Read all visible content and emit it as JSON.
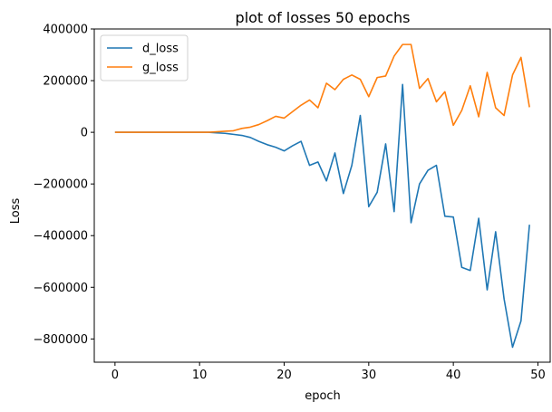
{
  "chart_data": {
    "type": "line",
    "title": "plot of losses 50 epochs",
    "xlabel": "epoch",
    "ylabel": "Loss",
    "xlim": [
      -2.45,
      51.45
    ],
    "ylim": [
      -890000,
      400000
    ],
    "xticks": [
      0,
      10,
      20,
      30,
      40,
      50
    ],
    "yticks": [
      400000,
      200000,
      0,
      -200000,
      -400000,
      -600000,
      -800000
    ],
    "grid": false,
    "legend_position": "top-left",
    "x": [
      0,
      1,
      2,
      3,
      4,
      5,
      6,
      7,
      8,
      9,
      10,
      11,
      12,
      13,
      14,
      15,
      16,
      17,
      18,
      19,
      20,
      21,
      22,
      23,
      24,
      25,
      26,
      27,
      28,
      29,
      30,
      31,
      32,
      33,
      34,
      35,
      36,
      37,
      38,
      39,
      40,
      41,
      42,
      43,
      44,
      45,
      46,
      47,
      48,
      49
    ],
    "series": [
      {
        "name": "d_loss",
        "color": "#1f77b4",
        "values": [
          0,
          0,
          0,
          0,
          0,
          0,
          0,
          0,
          0,
          0,
          0,
          0,
          -2000,
          -4000,
          -8000,
          -12000,
          -20000,
          -35000,
          -48000,
          -58000,
          -72000,
          -52000,
          -35000,
          -128000,
          -115000,
          -188000,
          -80000,
          -237000,
          -128000,
          65000,
          -288000,
          -232000,
          -45000,
          -307000,
          185000,
          -350000,
          -200000,
          -147000,
          -128000,
          -325000,
          -328000,
          -523000,
          -535000,
          -333000,
          -610000,
          -385000,
          -645000,
          -832000,
          -730000,
          -358000
        ]
      },
      {
        "name": "g_loss",
        "color": "#ff7f0e",
        "values": [
          0,
          0,
          0,
          0,
          0,
          0,
          0,
          0,
          0,
          0,
          0,
          0,
          2000,
          4000,
          6000,
          15000,
          20000,
          30000,
          45000,
          62000,
          55000,
          80000,
          105000,
          125000,
          95000,
          190000,
          165000,
          205000,
          222000,
          205000,
          138000,
          212000,
          218000,
          295000,
          340000,
          340000,
          170000,
          208000,
          118000,
          157000,
          27000,
          85000,
          180000,
          60000,
          232000,
          95000,
          65000,
          222000,
          290000,
          97000
        ]
      }
    ]
  }
}
